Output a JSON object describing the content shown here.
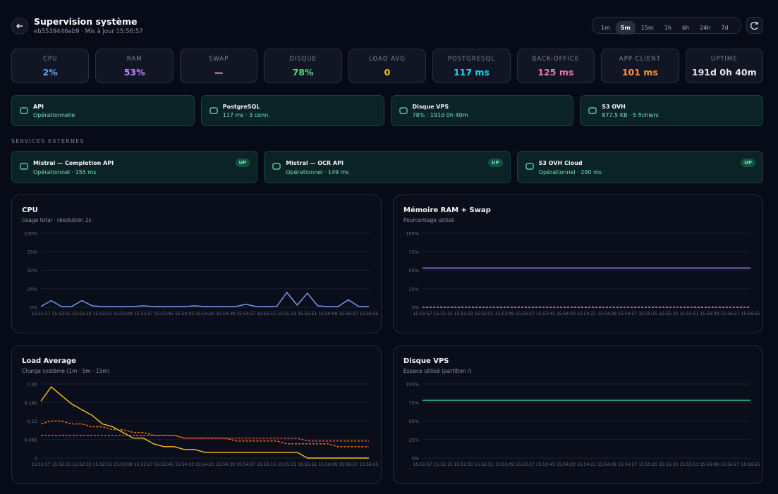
{
  "header": {
    "title": "Supervision système",
    "subtitle": "eb5539446eb9 · Mis à jour 15:56:57"
  },
  "ranges": {
    "items": [
      "1m",
      "5m",
      "15m",
      "1h",
      "6h",
      "24h",
      "7d"
    ],
    "active": 1
  },
  "metrics": [
    {
      "label": "CPU",
      "value": "2%",
      "color": "#60a5fa"
    },
    {
      "label": "RAM",
      "value": "53%",
      "color": "#c084fc"
    },
    {
      "label": "SWAP",
      "value": "—",
      "color": "#f0abfc"
    },
    {
      "label": "DISQUE",
      "value": "78%",
      "color": "#4ade80"
    },
    {
      "label": "LOAD AVG",
      "value": "0",
      "color": "#fbbf24"
    },
    {
      "label": "POSTGRESQL",
      "value": "117 ms",
      "color": "#22d3ee"
    },
    {
      "label": "BACK-OFFICE",
      "value": "125 ms",
      "color": "#f472b6"
    },
    {
      "label": "APP CLIENT",
      "value": "101 ms",
      "color": "#fb923c"
    },
    {
      "label": "UPTIME",
      "value": "191d 0h 40m",
      "color": "#e5e7eb"
    }
  ],
  "status": [
    {
      "title": "API",
      "detail": "Opérationnelle"
    },
    {
      "title": "PostgreSQL",
      "detail": "117 ms · 3 conn."
    },
    {
      "title": "Disque VPS",
      "detail": "78% · 191d 0h 40m"
    },
    {
      "title": "S3 OVH",
      "detail": "877.5 KB · 5 fichiers"
    }
  ],
  "external": {
    "title": "SERVICES EXTERNES",
    "items": [
      {
        "title": "Mistral — Completion API",
        "detail": "Opérationnel · 155 ms",
        "badge": "UP"
      },
      {
        "title": "Mistral — OCR API",
        "detail": "Opérationnel · 149 ms",
        "badge": "UP"
      },
      {
        "title": "S3 OVH Cloud",
        "detail": "Opérationnel · 290 ms",
        "badge": "UP"
      }
    ]
  },
  "chart_data": [
    {
      "type": "line",
      "title": "CPU",
      "subtitle": "Usage total · résolution 2s",
      "categories": [
        "15:51:57",
        null,
        "15:52:15",
        null,
        "15:52:33",
        null,
        "15:52:51",
        null,
        "15:53:09",
        null,
        "15:53:27",
        null,
        "15:53:45",
        null,
        "15:54:03",
        null,
        "15:54:21",
        null,
        "15:54:39",
        null,
        "15:54:57",
        null,
        "15:55:15",
        null,
        "15:55:33",
        null,
        "15:55:51",
        null,
        "15:56:09",
        null,
        "15:56:27",
        null,
        "15:56:55"
      ],
      "series": [
        {
          "color": "#7aa2f7",
          "dash": false,
          "values": [
            1,
            9,
            1,
            1,
            9,
            2,
            1,
            1,
            1,
            1,
            2,
            1,
            1,
            1,
            1,
            2,
            1,
            1,
            1,
            1,
            4,
            1,
            1,
            1,
            20,
            3,
            19,
            2,
            1,
            1,
            10,
            1,
            1
          ]
        }
      ],
      "ylim": [
        0,
        100
      ],
      "yticks": [
        {
          "value": 0,
          "label": "0%"
        },
        {
          "value": 25,
          "label": "25%"
        },
        {
          "value": 50,
          "label": "50%"
        },
        {
          "value": 75,
          "label": "75%"
        },
        {
          "value": 100,
          "label": "100%"
        }
      ],
      "grid": true
    },
    {
      "type": "line",
      "title": "Mémoire RAM + Swap",
      "subtitle": "Pourcentage utilisé",
      "categories": [
        "15:51:57",
        null,
        "15:52:15",
        null,
        "15:52:33",
        null,
        "15:52:51",
        null,
        "15:53:09",
        null,
        "15:53:27",
        null,
        "15:53:45",
        null,
        "15:54:03",
        null,
        "15:54:21",
        null,
        "15:54:39",
        null,
        "15:54:57",
        null,
        "15:55:15",
        null,
        "15:55:33",
        null,
        "15:55:51",
        null,
        "15:56:09",
        null,
        "15:56:27",
        null,
        "15:56:55"
      ],
      "series": [
        {
          "color": "#a78bfa",
          "dash": false,
          "values": [
            53,
            53,
            53,
            53,
            53,
            53,
            53,
            53,
            53,
            53,
            53,
            53,
            53,
            53,
            53,
            53,
            53,
            53,
            53,
            53,
            53,
            53,
            53,
            53,
            53,
            53,
            53,
            53,
            53,
            53,
            53,
            53,
            53
          ]
        },
        {
          "color": "#f472b6",
          "dash": true,
          "values": [
            0,
            0,
            0,
            0,
            0,
            0,
            0,
            0,
            0,
            0,
            0,
            0,
            0,
            0,
            0,
            0,
            0,
            0,
            0,
            0,
            0,
            0,
            0,
            0,
            0,
            0,
            0,
            0,
            0,
            0,
            0,
            0,
            0
          ]
        }
      ],
      "ylim": [
        0,
        100
      ],
      "yticks": [
        {
          "value": 0,
          "label": "0%"
        },
        {
          "value": 25,
          "label": "25%"
        },
        {
          "value": 50,
          "label": "50%"
        },
        {
          "value": 75,
          "label": "75%"
        },
        {
          "value": 100,
          "label": "100%"
        }
      ],
      "grid": true
    },
    {
      "type": "line",
      "title": "Load Average",
      "subtitle": "Charge système (1m · 5m · 15m)",
      "categories": [
        "15:51:57",
        null,
        "15:52:15",
        null,
        "15:52:33",
        null,
        "15:52:51",
        null,
        "15:53:09",
        null,
        "15:53:27",
        null,
        "15:53:45",
        null,
        "15:54:03",
        null,
        "15:54:21",
        null,
        "15:54:39",
        null,
        "15:54:57",
        null,
        "15:55:15",
        null,
        "15:55:33",
        null,
        "15:55:51",
        null,
        "15:56:09",
        null,
        "15:56:27",
        null,
        "15:56:55"
      ],
      "series": [
        {
          "color": "#fbbf24",
          "dash": false,
          "values": [
            0.2,
            0.25,
            0.22,
            0.19,
            0.17,
            0.15,
            0.12,
            0.11,
            0.09,
            0.07,
            0.07,
            0.05,
            0.04,
            0.04,
            0.03,
            0.03,
            0.02,
            0.02,
            0.02,
            0.02,
            0.02,
            0.02,
            0.02,
            0.02,
            0.02,
            0.02,
            0,
            0,
            0,
            0,
            0,
            0,
            0
          ]
        },
        {
          "color": "#f97316",
          "dash": true,
          "values": [
            0.12,
            0.13,
            0.13,
            0.12,
            0.12,
            0.11,
            0.11,
            0.1,
            0.1,
            0.09,
            0.09,
            0.08,
            0.08,
            0.08,
            0.07,
            0.07,
            0.07,
            0.07,
            0.07,
            0.06,
            0.06,
            0.06,
            0.06,
            0.06,
            0.05,
            0.05,
            0.05,
            0.05,
            0.05,
            0.04,
            0.04,
            0.04,
            0.04
          ]
        },
        {
          "color": "#ef5a3c",
          "dash": true,
          "values": [
            0.08,
            0.08,
            0.08,
            0.08,
            0.08,
            0.08,
            0.08,
            0.08,
            0.08,
            0.08,
            0.08,
            0.08,
            0.08,
            0.08,
            0.07,
            0.07,
            0.07,
            0.07,
            0.07,
            0.07,
            0.07,
            0.07,
            0.07,
            0.07,
            0.07,
            0.07,
            0.06,
            0.06,
            0.06,
            0.06,
            0.06,
            0.06,
            0.06
          ]
        }
      ],
      "ylim": [
        0,
        0.26
      ],
      "yticks": [
        0,
        0.065,
        0.13,
        0.195,
        0.26
      ],
      "grid": true
    },
    {
      "type": "line",
      "title": "Disque VPS",
      "subtitle": "Espace utilisé (partition /)",
      "categories": [
        "15:51:57",
        null,
        "15:52:15",
        null,
        "15:52:33",
        null,
        "15:52:51",
        null,
        "15:53:09",
        null,
        "15:53:27",
        null,
        "15:53:45",
        null,
        "15:54:03",
        null,
        "15:54:21",
        null,
        "15:54:39",
        null,
        "15:54:57",
        null,
        "15:55:15",
        null,
        "15:55:33",
        null,
        "15:55:51",
        null,
        "15:56:09",
        null,
        "15:56:27",
        null,
        "15:56:55"
      ],
      "series": [
        {
          "color": "#34d399",
          "dash": false,
          "values": [
            78,
            78,
            78,
            78,
            78,
            78,
            78,
            78,
            78,
            78,
            78,
            78,
            78,
            78,
            78,
            78,
            78,
            78,
            78,
            78,
            78,
            78,
            78,
            78,
            78,
            78,
            78,
            78,
            78,
            78,
            78,
            78,
            78
          ]
        }
      ],
      "ylim": [
        0,
        100
      ],
      "yticks": [
        {
          "value": 0,
          "label": "0%"
        },
        {
          "value": 25,
          "label": "25%"
        },
        {
          "value": 50,
          "label": "50%"
        },
        {
          "value": 75,
          "label": "75%"
        },
        {
          "value": 100,
          "label": "100%"
        }
      ],
      "grid": true
    }
  ]
}
